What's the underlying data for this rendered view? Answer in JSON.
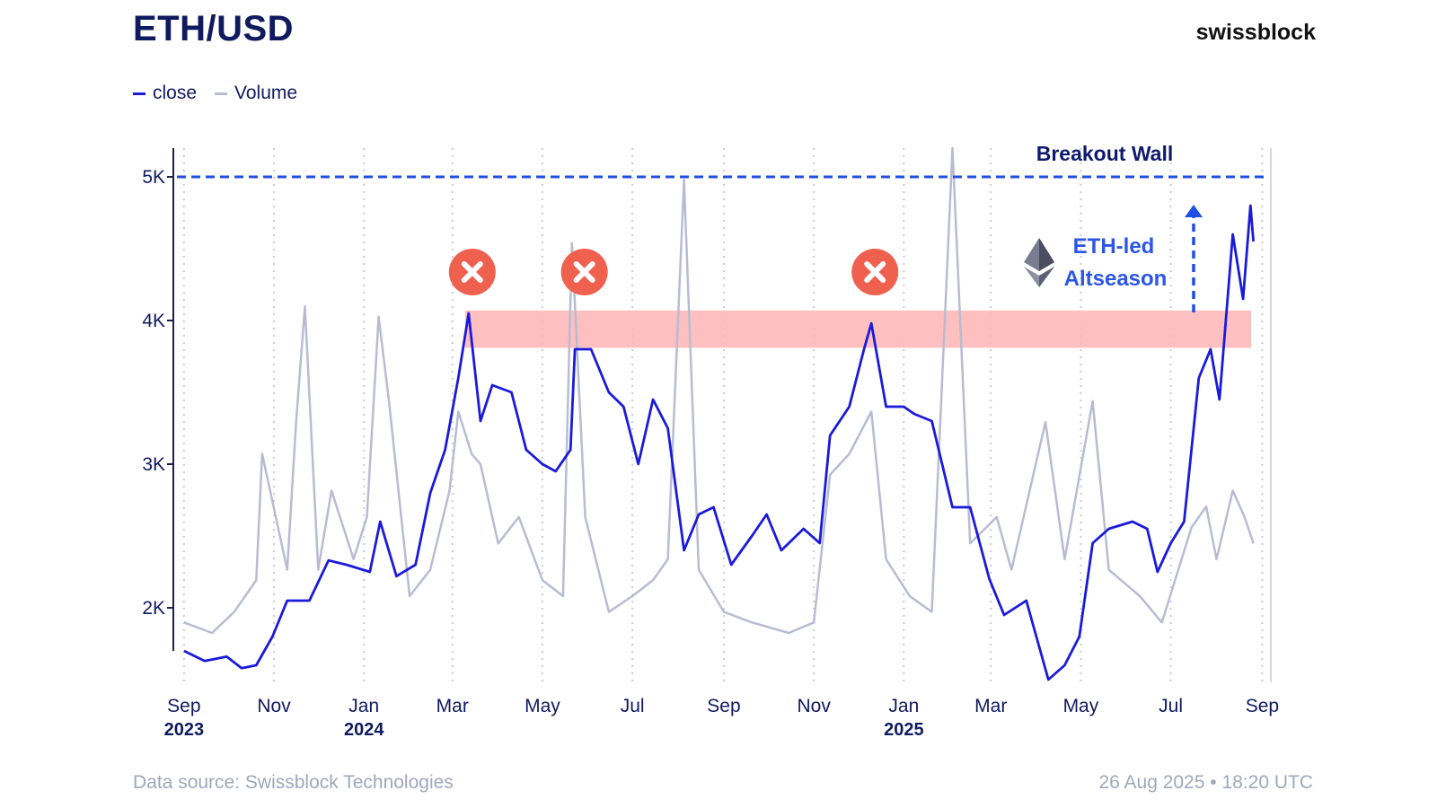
{
  "header": {
    "title": "ETH/USD",
    "brand": "swissblock"
  },
  "legend": [
    {
      "label": "close",
      "color": "#1a1adb"
    },
    {
      "label": "Volume",
      "color": "#b8bcd3"
    }
  ],
  "footer": {
    "source": "Data source: Swissblock Technologies",
    "timestamp": "26 Aug 2025 • 18:20 UTC"
  },
  "annotations": {
    "breakout_label": "Breakout Wall",
    "breakout_level": 5000,
    "resistance_zone": [
      3810,
      4070
    ],
    "altseason_line1": "ETH-led",
    "altseason_line2": "Altseason",
    "rejections": [
      "2024-03-12",
      "2024-05-27",
      "2024-12-10"
    ]
  },
  "chart_data": {
    "type": "line",
    "title": "ETH/USD",
    "xlabel": "",
    "ylabel": "",
    "ylim": [
      1500,
      5300
    ],
    "yticks": [
      2000,
      3000,
      4000,
      5000
    ],
    "ytick_labels": [
      "2K",
      "3K",
      "4K",
      "5K"
    ],
    "xlim": [
      "2023-08-26",
      "2025-09-05"
    ],
    "xticks": [
      {
        "date": "2023-09-01",
        "label": "Sep",
        "year": "2023"
      },
      {
        "date": "2023-11-01",
        "label": "Nov",
        "year": ""
      },
      {
        "date": "2024-01-01",
        "label": "Jan",
        "year": "2024"
      },
      {
        "date": "2024-03-01",
        "label": "Mar",
        "year": ""
      },
      {
        "date": "2024-05-01",
        "label": "May",
        "year": ""
      },
      {
        "date": "2024-07-01",
        "label": "Jul",
        "year": ""
      },
      {
        "date": "2024-09-01",
        "label": "Sep",
        "year": ""
      },
      {
        "date": "2024-11-01",
        "label": "Nov",
        "year": ""
      },
      {
        "date": "2025-01-01",
        "label": "Jan",
        "year": "2025"
      },
      {
        "date": "2025-03-01",
        "label": "Mar",
        "year": ""
      },
      {
        "date": "2025-05-01",
        "label": "May",
        "year": ""
      },
      {
        "date": "2025-07-01",
        "label": "Jul",
        "year": ""
      },
      {
        "date": "2025-09-01",
        "label": "Sep",
        "year": ""
      }
    ],
    "series": [
      {
        "name": "close",
        "color": "#1a1adb",
        "points": [
          [
            "2023-09-01",
            1700
          ],
          [
            "2023-09-15",
            1630
          ],
          [
            "2023-09-30",
            1660
          ],
          [
            "2023-10-10",
            1580
          ],
          [
            "2023-10-20",
            1600
          ],
          [
            "2023-10-31",
            1800
          ],
          [
            "2023-11-10",
            2050
          ],
          [
            "2023-11-25",
            2050
          ],
          [
            "2023-12-08",
            2330
          ],
          [
            "2023-12-20",
            2300
          ],
          [
            "2024-01-05",
            2250
          ],
          [
            "2024-01-12",
            2600
          ],
          [
            "2024-01-23",
            2220
          ],
          [
            "2024-02-05",
            2300
          ],
          [
            "2024-02-15",
            2800
          ],
          [
            "2024-02-25",
            3100
          ],
          [
            "2024-03-05",
            3600
          ],
          [
            "2024-03-12",
            4050
          ],
          [
            "2024-03-20",
            3300
          ],
          [
            "2024-03-28",
            3550
          ],
          [
            "2024-04-10",
            3500
          ],
          [
            "2024-04-20",
            3100
          ],
          [
            "2024-05-01",
            3000
          ],
          [
            "2024-05-10",
            2950
          ],
          [
            "2024-05-20",
            3100
          ],
          [
            "2024-05-23",
            3800
          ],
          [
            "2024-06-03",
            3800
          ],
          [
            "2024-06-15",
            3500
          ],
          [
            "2024-06-25",
            3400
          ],
          [
            "2024-07-05",
            3000
          ],
          [
            "2024-07-15",
            3450
          ],
          [
            "2024-07-25",
            3250
          ],
          [
            "2024-08-05",
            2400
          ],
          [
            "2024-08-15",
            2650
          ],
          [
            "2024-08-25",
            2700
          ],
          [
            "2024-09-06",
            2300
          ],
          [
            "2024-09-20",
            2500
          ],
          [
            "2024-09-30",
            2650
          ],
          [
            "2024-10-10",
            2400
          ],
          [
            "2024-10-25",
            2550
          ],
          [
            "2024-11-05",
            2450
          ],
          [
            "2024-11-12",
            3200
          ],
          [
            "2024-11-25",
            3400
          ],
          [
            "2024-12-05",
            3800
          ],
          [
            "2024-12-10",
            3980
          ],
          [
            "2024-12-20",
            3400
          ],
          [
            "2025-01-01",
            3400
          ],
          [
            "2025-01-08",
            3350
          ],
          [
            "2025-01-20",
            3300
          ],
          [
            "2025-02-03",
            2700
          ],
          [
            "2025-02-15",
            2700
          ],
          [
            "2025-02-28",
            2200
          ],
          [
            "2025-03-10",
            1950
          ],
          [
            "2025-03-25",
            2050
          ],
          [
            "2025-04-09",
            1500
          ],
          [
            "2025-04-20",
            1600
          ],
          [
            "2025-04-30",
            1800
          ],
          [
            "2025-05-09",
            2450
          ],
          [
            "2025-05-20",
            2550
          ],
          [
            "2025-06-05",
            2600
          ],
          [
            "2025-06-15",
            2550
          ],
          [
            "2025-06-22",
            2250
          ],
          [
            "2025-07-01",
            2450
          ],
          [
            "2025-07-10",
            2600
          ],
          [
            "2025-07-20",
            3600
          ],
          [
            "2025-07-28",
            3800
          ],
          [
            "2025-08-03",
            3450
          ],
          [
            "2025-08-12",
            4600
          ],
          [
            "2025-08-19",
            4150
          ],
          [
            "2025-08-24",
            4800
          ],
          [
            "2025-08-26",
            4550
          ]
        ]
      },
      {
        "name": "Volume",
        "color": "#b8bcd3",
        "points": [
          [
            "2023-09-01",
            0.1
          ],
          [
            "2023-09-20",
            0.08
          ],
          [
            "2023-10-05",
            0.12
          ],
          [
            "2023-10-20",
            0.18
          ],
          [
            "2023-10-24",
            0.42
          ],
          [
            "2023-11-10",
            0.2
          ],
          [
            "2023-11-16",
            0.48
          ],
          [
            "2023-11-22",
            0.7
          ],
          [
            "2023-12-01",
            0.2
          ],
          [
            "2023-12-10",
            0.35
          ],
          [
            "2023-12-25",
            0.22
          ],
          [
            "2024-01-03",
            0.3
          ],
          [
            "2024-01-11",
            0.68
          ],
          [
            "2024-01-18",
            0.52
          ],
          [
            "2024-02-01",
            0.15
          ],
          [
            "2024-02-15",
            0.2
          ],
          [
            "2024-02-28",
            0.35
          ],
          [
            "2024-03-05",
            0.5
          ],
          [
            "2024-03-14",
            0.42
          ],
          [
            "2024-03-20",
            0.4
          ],
          [
            "2024-04-01",
            0.25
          ],
          [
            "2024-04-15",
            0.3
          ],
          [
            "2024-05-01",
            0.18
          ],
          [
            "2024-05-15",
            0.15
          ],
          [
            "2024-05-21",
            0.82
          ],
          [
            "2024-05-30",
            0.3
          ],
          [
            "2024-06-15",
            0.12
          ],
          [
            "2024-07-01",
            0.15
          ],
          [
            "2024-07-15",
            0.18
          ],
          [
            "2024-07-25",
            0.22
          ],
          [
            "2024-08-05",
            0.94
          ],
          [
            "2024-08-15",
            0.2
          ],
          [
            "2024-09-01",
            0.12
          ],
          [
            "2024-09-20",
            0.1
          ],
          [
            "2024-10-15",
            0.08
          ],
          [
            "2024-11-01",
            0.1
          ],
          [
            "2024-11-12",
            0.38
          ],
          [
            "2024-11-25",
            0.42
          ],
          [
            "2024-12-10",
            0.5
          ],
          [
            "2024-12-20",
            0.22
          ],
          [
            "2025-01-05",
            0.15
          ],
          [
            "2025-01-20",
            0.12
          ],
          [
            "2025-02-03",
            1.0
          ],
          [
            "2025-02-15",
            0.25
          ],
          [
            "2025-03-05",
            0.3
          ],
          [
            "2025-03-15",
            0.2
          ],
          [
            "2025-04-07",
            0.48
          ],
          [
            "2025-04-20",
            0.22
          ],
          [
            "2025-05-09",
            0.52
          ],
          [
            "2025-05-20",
            0.2
          ],
          [
            "2025-06-10",
            0.15
          ],
          [
            "2025-06-25",
            0.1
          ],
          [
            "2025-07-15",
            0.28
          ],
          [
            "2025-07-25",
            0.32
          ],
          [
            "2025-08-01",
            0.22
          ],
          [
            "2025-08-12",
            0.35
          ],
          [
            "2025-08-20",
            0.3
          ],
          [
            "2025-08-26",
            0.25
          ]
        ]
      }
    ]
  }
}
